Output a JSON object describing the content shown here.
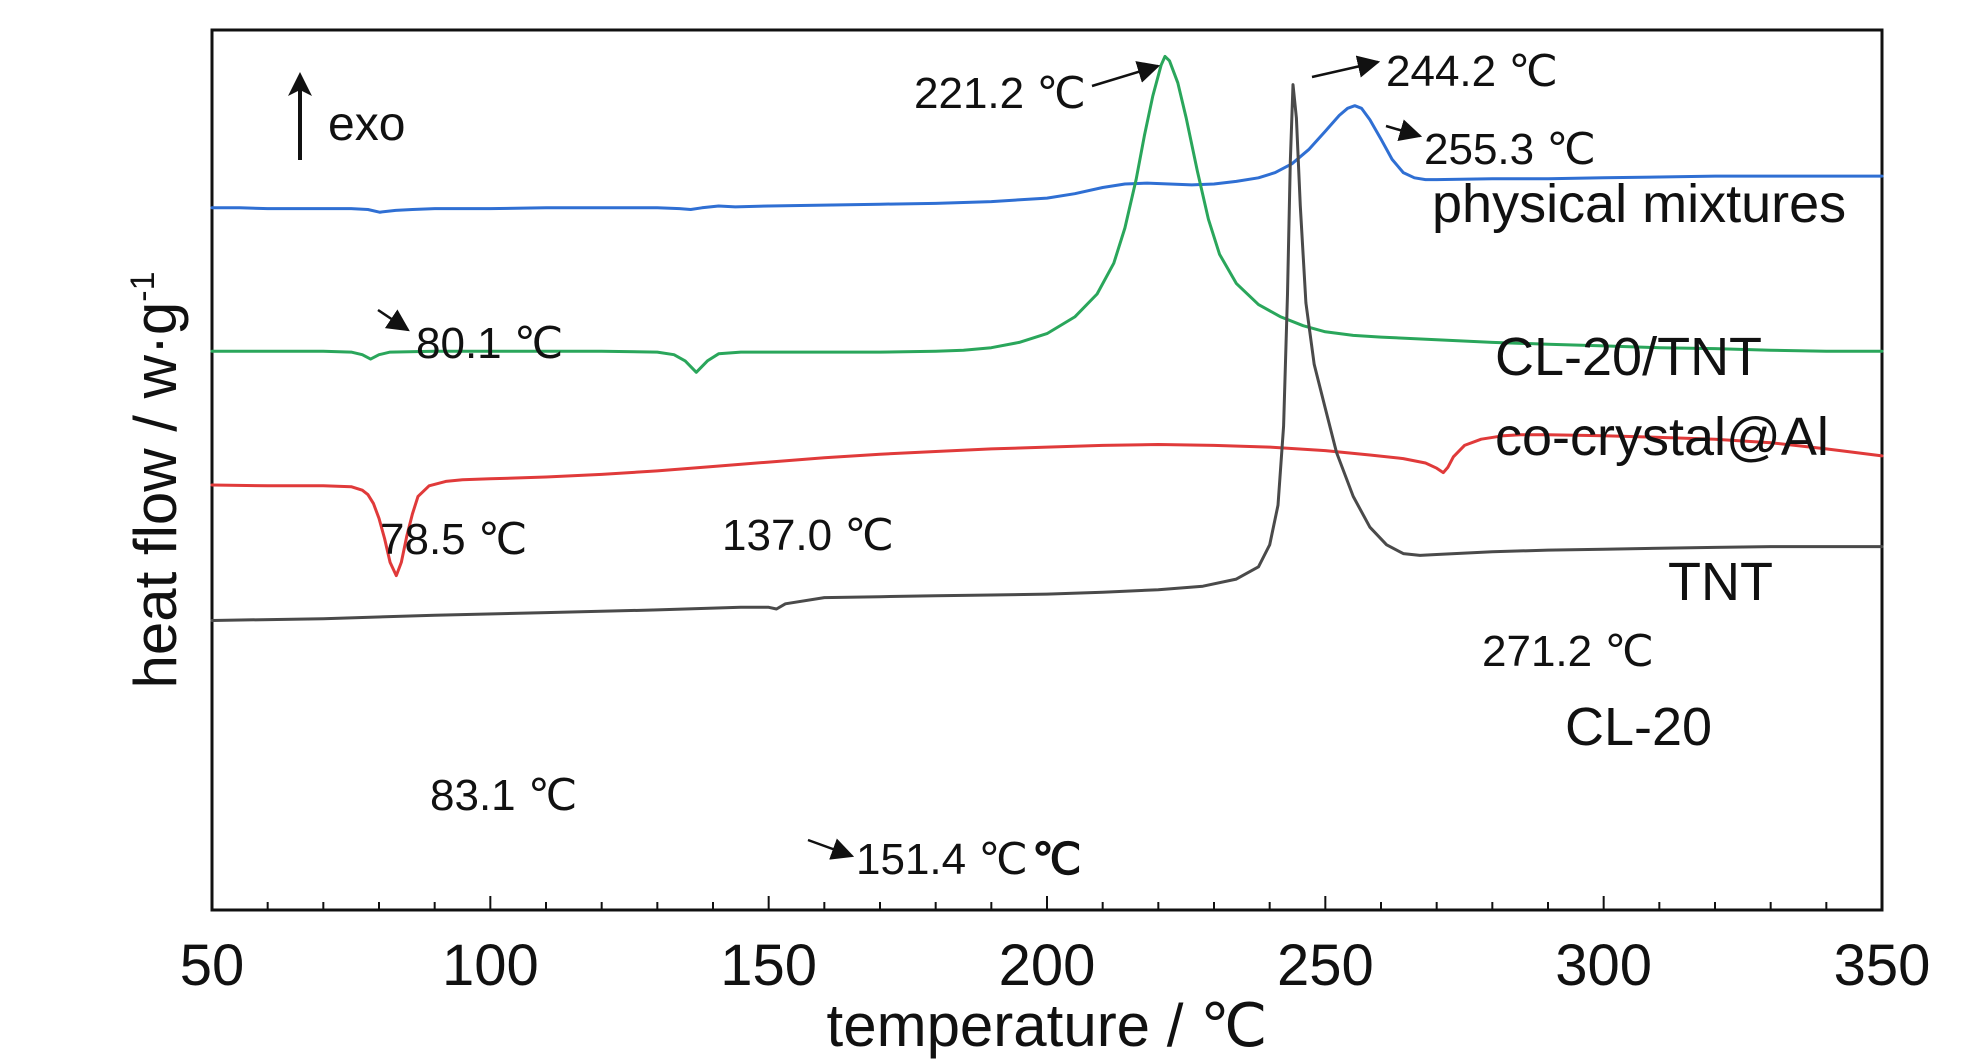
{
  "chart_data": {
    "type": "line",
    "xlabel": "temperature / ℃",
    "ylabel": "heat flow / w·g",
    "ylabel_sup": "-1",
    "xlim": [
      50,
      350
    ],
    "xticks": [
      "50",
      "100",
      "150",
      "200",
      "250",
      "300",
      "350"
    ],
    "exo_label": "exo",
    "series": [
      {
        "name": "physical mixtures",
        "color": "#2f6fd3",
        "points": [
          [
            50,
            202
          ],
          [
            55,
            202
          ],
          [
            60,
            203
          ],
          [
            65,
            203
          ],
          [
            70,
            203
          ],
          [
            75,
            203
          ],
          [
            78,
            204
          ],
          [
            80.1,
            207
          ],
          [
            83,
            205
          ],
          [
            86,
            204
          ],
          [
            90,
            203
          ],
          [
            100,
            203
          ],
          [
            110,
            202
          ],
          [
            120,
            202
          ],
          [
            130,
            202
          ],
          [
            134,
            203
          ],
          [
            136,
            204
          ],
          [
            138,
            202
          ],
          [
            141,
            200
          ],
          [
            144,
            201
          ],
          [
            150,
            200
          ],
          [
            160,
            199
          ],
          [
            170,
            198
          ],
          [
            180,
            197
          ],
          [
            190,
            195
          ],
          [
            200,
            191
          ],
          [
            205,
            186
          ],
          [
            210,
            179
          ],
          [
            214,
            175
          ],
          [
            218,
            174
          ],
          [
            222,
            175
          ],
          [
            226,
            176
          ],
          [
            230,
            175
          ],
          [
            234,
            172
          ],
          [
            238,
            168
          ],
          [
            241,
            162
          ],
          [
            244,
            152
          ],
          [
            247,
            136
          ],
          [
            250,
            115
          ],
          [
            252.5,
            97
          ],
          [
            254,
            89
          ],
          [
            255.3,
            86
          ],
          [
            256.5,
            89
          ],
          [
            258,
            102
          ],
          [
            260,
            124
          ],
          [
            262,
            147
          ],
          [
            264,
            162
          ],
          [
            266,
            168
          ],
          [
            268,
            170
          ],
          [
            270,
            170
          ],
          [
            280,
            169
          ],
          [
            290,
            169
          ],
          [
            300,
            168
          ],
          [
            310,
            167
          ],
          [
            320,
            166
          ],
          [
            330,
            166
          ],
          [
            340,
            166
          ],
          [
            350,
            166
          ]
        ]
      },
      {
        "name": "CL-20/TNT co-crystal@Al",
        "color": "#2aa65b",
        "points": [
          [
            50,
            365
          ],
          [
            60,
            365
          ],
          [
            70,
            365
          ],
          [
            75,
            366
          ],
          [
            77,
            369
          ],
          [
            78.5,
            374
          ],
          [
            80,
            369
          ],
          [
            82,
            366
          ],
          [
            90,
            365
          ],
          [
            100,
            365
          ],
          [
            110,
            365
          ],
          [
            120,
            365
          ],
          [
            130,
            366
          ],
          [
            133,
            369
          ],
          [
            135,
            376
          ],
          [
            137,
            389
          ],
          [
            139,
            376
          ],
          [
            141,
            368
          ],
          [
            145,
            366
          ],
          [
            150,
            366
          ],
          [
            160,
            366
          ],
          [
            170,
            366
          ],
          [
            180,
            365
          ],
          [
            185,
            364
          ],
          [
            190,
            361
          ],
          [
            195,
            355
          ],
          [
            200,
            345
          ],
          [
            205,
            326
          ],
          [
            209,
            300
          ],
          [
            212,
            265
          ],
          [
            214,
            225
          ],
          [
            216,
            170
          ],
          [
            217.5,
            120
          ],
          [
            219,
            75
          ],
          [
            220.5,
            40
          ],
          [
            221.2,
            30
          ],
          [
            222,
            35
          ],
          [
            223.5,
            60
          ],
          [
            225,
            100
          ],
          [
            227,
            160
          ],
          [
            229,
            215
          ],
          [
            231,
            255
          ],
          [
            234,
            288
          ],
          [
            238,
            312
          ],
          [
            242,
            326
          ],
          [
            246,
            336
          ],
          [
            250,
            343
          ],
          [
            255,
            347
          ],
          [
            260,
            349
          ],
          [
            270,
            352
          ],
          [
            280,
            355
          ],
          [
            290,
            357
          ],
          [
            300,
            359
          ],
          [
            310,
            361
          ],
          [
            320,
            362
          ],
          [
            330,
            364
          ],
          [
            340,
            365
          ],
          [
            350,
            365
          ]
        ]
      },
      {
        "name": "TNT",
        "color": "#e03a3a",
        "points": [
          [
            50,
            517
          ],
          [
            60,
            518
          ],
          [
            65,
            518
          ],
          [
            70,
            518
          ],
          [
            75,
            519
          ],
          [
            77,
            523
          ],
          [
            78,
            528
          ],
          [
            79,
            538
          ],
          [
            80,
            555
          ],
          [
            81,
            578
          ],
          [
            82,
            605
          ],
          [
            83.1,
            620
          ],
          [
            84,
            605
          ],
          [
            85,
            575
          ],
          [
            86,
            550
          ],
          [
            87,
            530
          ],
          [
            89,
            518
          ],
          [
            92,
            513
          ],
          [
            95,
            511
          ],
          [
            100,
            510
          ],
          [
            110,
            508
          ],
          [
            120,
            505
          ],
          [
            130,
            501
          ],
          [
            140,
            496
          ],
          [
            150,
            491
          ],
          [
            160,
            486
          ],
          [
            170,
            482
          ],
          [
            180,
            479
          ],
          [
            190,
            476
          ],
          [
            200,
            474
          ],
          [
            210,
            472
          ],
          [
            220,
            471
          ],
          [
            230,
            472
          ],
          [
            240,
            474
          ],
          [
            250,
            478
          ],
          [
            258,
            483
          ],
          [
            264,
            487
          ],
          [
            268,
            492
          ],
          [
            270,
            498
          ],
          [
            271.2,
            503
          ],
          [
            272,
            497
          ],
          [
            273,
            485
          ],
          [
            275,
            472
          ],
          [
            278,
            465
          ],
          [
            282,
            461
          ],
          [
            285,
            460
          ],
          [
            290,
            460
          ],
          [
            300,
            461
          ],
          [
            310,
            463
          ],
          [
            320,
            465
          ],
          [
            330,
            469
          ],
          [
            340,
            476
          ],
          [
            350,
            484
          ]
        ]
      },
      {
        "name": "CL-20",
        "color": "#4a4a4a",
        "points": [
          [
            50,
            671
          ],
          [
            70,
            669
          ],
          [
            90,
            665
          ],
          [
            110,
            662
          ],
          [
            130,
            659
          ],
          [
            145,
            656
          ],
          [
            150,
            656
          ],
          [
            151.4,
            658
          ],
          [
            153,
            652
          ],
          [
            160,
            645
          ],
          [
            170,
            644
          ],
          [
            180,
            643
          ],
          [
            190,
            642
          ],
          [
            200,
            641
          ],
          [
            210,
            639
          ],
          [
            220,
            636
          ],
          [
            228,
            632
          ],
          [
            234,
            624
          ],
          [
            238,
            610
          ],
          [
            240,
            585
          ],
          [
            241.5,
            540
          ],
          [
            242.5,
            450
          ],
          [
            243.2,
            300
          ],
          [
            243.7,
            150
          ],
          [
            244.2,
            62
          ],
          [
            244.8,
            100
          ],
          [
            245.5,
            200
          ],
          [
            246.5,
            310
          ],
          [
            248,
            380
          ],
          [
            250,
            430
          ],
          [
            252,
            480
          ],
          [
            255,
            530
          ],
          [
            258,
            565
          ],
          [
            261,
            585
          ],
          [
            264,
            595
          ],
          [
            267,
            597
          ],
          [
            270,
            596
          ],
          [
            280,
            593
          ],
          [
            290,
            591
          ],
          [
            300,
            590
          ],
          [
            310,
            589
          ],
          [
            320,
            588
          ],
          [
            330,
            587
          ],
          [
            340,
            587
          ],
          [
            350,
            587
          ]
        ]
      }
    ],
    "labels": [
      {
        "text": "physical mixtures"
      },
      {
        "text": "CL-20/TNT"
      },
      {
        "text": "co-crystal@Al"
      },
      {
        "text": "TNT"
      },
      {
        "text": "CL-20"
      }
    ],
    "annotations": [
      {
        "text": "221.2 ℃"
      },
      {
        "text": "244.2 ℃"
      },
      {
        "text": "255.3 ℃"
      },
      {
        "text": "80.1 ℃"
      },
      {
        "text": "78.5 ℃"
      },
      {
        "text": "137.0 ℃"
      },
      {
        "text": "271.2 ℃"
      },
      {
        "text": "83.1 ℃"
      },
      {
        "text": "151.4 ℃"
      },
      {
        "text": "℃"
      }
    ]
  }
}
